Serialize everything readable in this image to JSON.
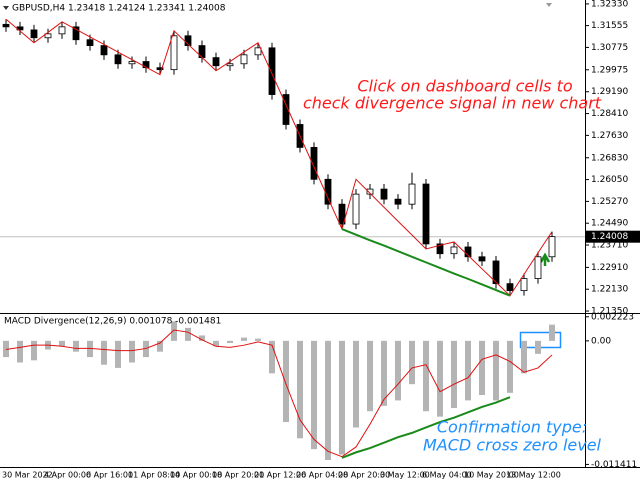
{
  "chart_data": [
    {
      "type": "candlestick",
      "title": "GBPUSD,H4  1.23418 1.24124 1.23341 1.24008",
      "annotation": [
        "Click on dashboard cells to",
        "check divergence signal in new chart"
      ],
      "annotation_color": "#ff1a1a",
      "categories": [
        "30 Mar 2022",
        null,
        null,
        "4 Apr 00:00",
        null,
        null,
        "6 Apr 16:00",
        null,
        null,
        "11 Apr 08:00",
        null,
        null,
        "14 Apr 00:00",
        null,
        null,
        "18 Apr 20:00",
        null,
        null,
        "21 Apr 12:00",
        null,
        null,
        "26 Apr 04:00",
        null,
        null,
        "28 Apr 20:00",
        null,
        null,
        "3 May 12:00",
        null,
        null,
        "6 May 04:00",
        null,
        null,
        "10 May 20:00",
        null,
        null,
        "13 May 12:00",
        null,
        null,
        null
      ],
      "open": [
        1.316,
        1.3151,
        1.314,
        1.3112,
        1.3126,
        1.3151,
        1.3105,
        1.3084,
        1.3051,
        1.3019,
        1.3027,
        1.3005,
        1.2998,
        1.3119,
        1.3084,
        1.3041,
        1.3012,
        1.3019,
        1.3051,
        1.3076,
        1.2909,
        1.2802,
        1.272,
        1.2606,
        1.2517,
        1.2446,
        1.2553,
        1.2571,
        1.2535,
        1.2517,
        1.2589,
        1.2375,
        1.234,
        1.2364,
        1.2329,
        1.2314,
        1.2233,
        1.2208,
        1.2251,
        1.2329
      ],
      "high": [
        1.3178,
        1.3169,
        1.3158,
        1.3144,
        1.3169,
        1.3169,
        1.3123,
        1.3102,
        1.3069,
        1.3045,
        1.3045,
        1.3023,
        1.3137,
        1.3137,
        1.3102,
        1.3059,
        1.3037,
        1.3069,
        1.3094,
        1.3094,
        1.2927,
        1.282,
        1.2738,
        1.2624,
        1.2535,
        1.2571,
        1.2589,
        1.2589,
        1.2553,
        1.263,
        1.2607,
        1.2393,
        1.2382,
        1.2382,
        1.2347,
        1.2332,
        1.2251,
        1.2269,
        1.2347,
        1.2419
      ],
      "low": [
        1.3133,
        1.3122,
        1.3094,
        1.3094,
        1.3108,
        1.3087,
        1.3066,
        1.3033,
        1.3001,
        1.3001,
        1.2987,
        1.298,
        1.298,
        1.3066,
        1.3023,
        1.2994,
        1.2994,
        1.3001,
        1.3033,
        1.2891,
        1.2784,
        1.2702,
        1.2588,
        1.2499,
        1.2428,
        1.2428,
        1.2535,
        1.2517,
        1.2499,
        1.2499,
        1.2357,
        1.2322,
        1.2322,
        1.2311,
        1.2296,
        1.2215,
        1.219,
        1.219,
        1.2233,
        1.2311
      ],
      "close": [
        1.3151,
        1.314,
        1.3112,
        1.3126,
        1.3151,
        1.3105,
        1.3084,
        1.3051,
        1.3019,
        1.3027,
        1.3005,
        1.2998,
        1.3119,
        1.3084,
        1.3041,
        1.3012,
        1.3019,
        1.3051,
        1.3076,
        1.2909,
        1.2802,
        1.272,
        1.2606,
        1.2517,
        1.2446,
        1.2553,
        1.2571,
        1.2535,
        1.2517,
        1.2589,
        1.2375,
        1.234,
        1.2364,
        1.2329,
        1.2314,
        1.2233,
        1.2208,
        1.2251,
        1.2329,
        1.2401
      ],
      "zigzag": {
        "color": "#e01010",
        "values": [
          1.3178,
          1.3136,
          1.3094,
          1.3131,
          1.3169,
          1.3142,
          1.3115,
          1.3088,
          1.3061,
          1.3034,
          1.3007,
          1.298,
          1.3137,
          1.3089,
          1.3042,
          1.2994,
          1.3027,
          1.3061,
          1.3094,
          1.2983,
          1.2872,
          1.2761,
          1.265,
          1.2539,
          1.2428,
          1.2606,
          1.2556,
          1.2506,
          1.2456,
          1.2407,
          1.2357,
          1.237,
          1.2382,
          1.2334,
          1.2286,
          1.2238,
          1.219,
          1.2266,
          1.2343,
          1.2419
        ]
      },
      "divergence": {
        "color": "#1a8a1a",
        "values": [
          null,
          null,
          null,
          null,
          null,
          null,
          null,
          null,
          null,
          null,
          null,
          null,
          null,
          null,
          null,
          null,
          null,
          null,
          null,
          null,
          null,
          null,
          null,
          null,
          1.2428,
          1.2408,
          1.2388,
          1.2369,
          1.2349,
          1.2329,
          1.2309,
          1.2289,
          1.2269,
          1.225,
          1.223,
          1.221,
          1.219,
          null,
          null,
          null
        ]
      },
      "current_price": 1.24008,
      "ylim": [
        1.2128,
        1.3247
      ],
      "yticks": [
        {
          "value": 1.3233,
          "label": "1.32330"
        },
        1.31555,
        1.30775,
        1.29975,
        {
          "value": 1.2919,
          "label": "1.29190"
        },
        {
          "value": 1.2841,
          "label": "1.28410"
        },
        {
          "value": 1.2763,
          "label": "1.27630"
        },
        {
          "value": 1.2683,
          "label": "1.26830"
        },
        {
          "value": 1.2605,
          "label": "1.26050"
        },
        {
          "value": 1.2527,
          "label": "1.25270"
        },
        {
          "value": 1.2449,
          "label": "1.24490"
        },
        {
          "value": 1.2371,
          "label": "1.23710"
        },
        {
          "value": 1.2291,
          "label": "1.22910"
        },
        {
          "value": 1.2213,
          "label": "1.22130"
        },
        {
          "value": 1.2135,
          "label": "1.21350"
        }
      ],
      "grid": false
    },
    {
      "type": "macd",
      "title": "MACD Divergence(12,26,9) 0.001078 -0.001481",
      "annotation": [
        "Confirmation type:",
        "MACD cross zero level"
      ],
      "annotation_color": "#1e90ff",
      "histogram": {
        "color": "#b4b4b4",
        "values": [
          -0.0015,
          -0.002,
          -0.0018,
          -0.0008,
          -0.0005,
          -0.001,
          -0.0015,
          -0.0022,
          -0.0025,
          -0.002,
          -0.0015,
          -0.001,
          0.0018,
          0.0012,
          0.0005,
          -0.0005,
          -0.0002,
          0.0003,
          0.0002,
          -0.003,
          -0.0075,
          -0.009,
          -0.01,
          -0.011,
          -0.0105,
          -0.008,
          -0.0065,
          -0.006,
          -0.0055,
          -0.004,
          -0.0065,
          -0.007,
          -0.0062,
          -0.0055,
          -0.005,
          -0.0055,
          -0.0048,
          -0.003,
          -0.0012,
          0.0015
        ]
      },
      "signal": {
        "color": "#e01010",
        "values": [
          -0.0008,
          -0.0006,
          -0.0004,
          -0.0004,
          -0.0005,
          -0.0007,
          -0.0007,
          -0.0008,
          -0.0009,
          -0.0009,
          -0.0007,
          -0.0002,
          0.001,
          0.0008,
          0.0001,
          -0.0005,
          -0.0006,
          -0.0004,
          -0.0001,
          -0.0004,
          -0.004,
          -0.0073,
          -0.0091,
          -0.0102,
          -0.0107,
          -0.0098,
          -0.0077,
          -0.0054,
          -0.004,
          -0.0025,
          -0.0022,
          -0.0047,
          -0.004,
          -0.0034,
          -0.0017,
          -0.0013,
          -0.0019,
          -0.0029,
          -0.0025,
          -0.0013
        ]
      },
      "divergence": {
        "color": "#1a8a1a",
        "values": [
          null,
          null,
          null,
          null,
          null,
          null,
          null,
          null,
          null,
          null,
          null,
          null,
          null,
          null,
          null,
          null,
          null,
          null,
          null,
          null,
          null,
          null,
          null,
          null,
          -0.0108,
          -0.0103,
          -0.0099,
          -0.0094,
          -0.0089,
          -0.0085,
          -0.008,
          -0.0075,
          -0.0071,
          -0.0066,
          -0.0061,
          -0.0057,
          -0.0052,
          null,
          null,
          null
        ]
      },
      "ylim": [
        -0.01165,
        0.00248
      ],
      "yticks": [
        0.002223,
        {
          "value": 0,
          "label": "0.00"
        },
        -0.011411
      ],
      "grid": false
    }
  ]
}
